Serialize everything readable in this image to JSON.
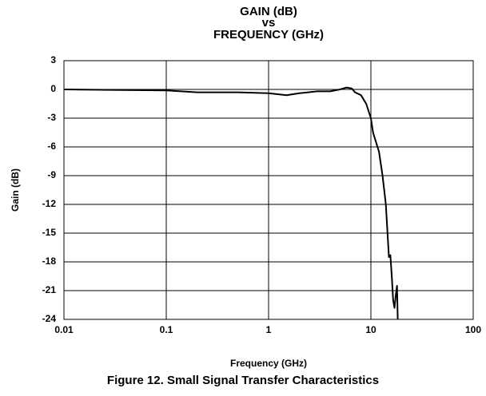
{
  "chart_data": {
    "type": "line",
    "title": [
      "GAIN (dB)",
      "vs",
      "FREQUENCY (GHz)"
    ],
    "x_label": "Frequency (GHz)",
    "y_label": "Gain (dB)",
    "caption": "Figure 12. Small Signal Transfer Characteristics",
    "x": [
      0.01,
      0.1,
      0.2,
      0.5,
      1,
      1.5,
      2,
      3,
      4,
      5,
      5.8,
      6.5,
      7,
      8,
      9,
      10,
      10.5,
      11,
      12,
      13,
      14,
      15,
      15.5,
      16,
      16.5,
      17,
      17.5,
      18,
      18.3
    ],
    "values": [
      0,
      -0.1,
      -0.3,
      -0.3,
      -0.4,
      -0.6,
      -0.4,
      -0.2,
      -0.2,
      0,
      0.2,
      0.1,
      -0.3,
      -0.6,
      -1.5,
      -3,
      -4.5,
      -5.2,
      -6.5,
      -9,
      -12,
      -17.5,
      -17.3,
      -19.5,
      -22,
      -22.8,
      -21.5,
      -20.5,
      -24
    ],
    "color": "#000000",
    "xlog": true,
    "xlim": [
      0.01,
      100
    ],
    "xticks": [
      0.01,
      0.1,
      1,
      10,
      100
    ],
    "ylim": [
      -24,
      3
    ],
    "yticks": [
      3,
      0,
      -3,
      -6,
      -9,
      -12,
      -15,
      -18,
      -21,
      -24
    ],
    "grid": true
  }
}
